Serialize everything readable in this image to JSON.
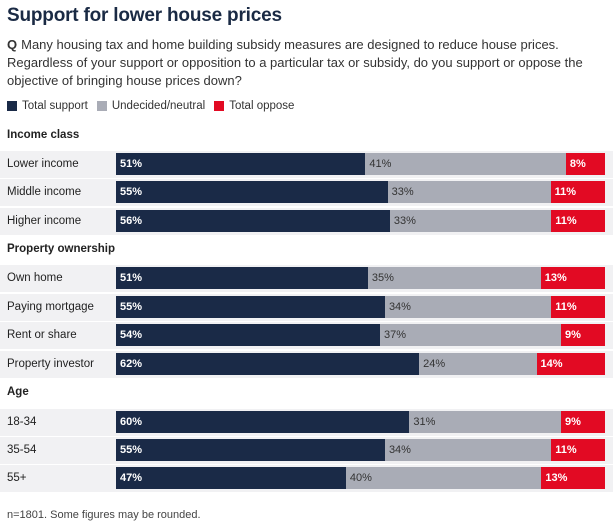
{
  "title": "Support for lower house prices",
  "question": {
    "prefix": "Q",
    "text": "Many housing tax and home building subsidy measures are designed to reduce house prices. Regardless of your support or opposition to a particular tax or subsidy, do you support or oppose the objective of bringing house prices down?"
  },
  "legend": [
    {
      "label": "Total support",
      "color": "#1a2a47"
    },
    {
      "label": "Undecided/neutral",
      "color": "#a9acb6"
    },
    {
      "label": "Total oppose",
      "color": "#e20a23"
    }
  ],
  "footnote": "n=1801. Some figures may be rounded.",
  "chart_data": {
    "type": "bar",
    "orientation": "horizontal",
    "stacked": true,
    "percent_suffix": "%",
    "series": [
      {
        "name": "Total support",
        "color": "#1a2a47"
      },
      {
        "name": "Undecided/neutral",
        "color": "#a9acb6"
      },
      {
        "name": "Total oppose",
        "color": "#e20a23"
      }
    ],
    "groups": [
      {
        "title": "Income class",
        "rows": [
          {
            "label": "Lower income",
            "values": [
              51,
              41,
              8
            ]
          },
          {
            "label": "Middle income",
            "values": [
              55,
              33,
              11
            ]
          },
          {
            "label": "Higher income",
            "values": [
              56,
              33,
              11
            ]
          }
        ]
      },
      {
        "title": "Property ownership",
        "rows": [
          {
            "label": "Own home",
            "values": [
              51,
              35,
              13
            ]
          },
          {
            "label": "Paying mortgage",
            "values": [
              55,
              34,
              11
            ]
          },
          {
            "label": "Rent or share",
            "values": [
              54,
              37,
              9
            ]
          },
          {
            "label": "Property investor",
            "values": [
              62,
              24,
              14
            ]
          }
        ]
      },
      {
        "title": "Age",
        "rows": [
          {
            "label": "18-34",
            "values": [
              60,
              31,
              9
            ]
          },
          {
            "label": "35-54",
            "values": [
              55,
              34,
              11
            ]
          },
          {
            "label": "55+",
            "values": [
              47,
              40,
              13
            ]
          }
        ]
      }
    ]
  }
}
